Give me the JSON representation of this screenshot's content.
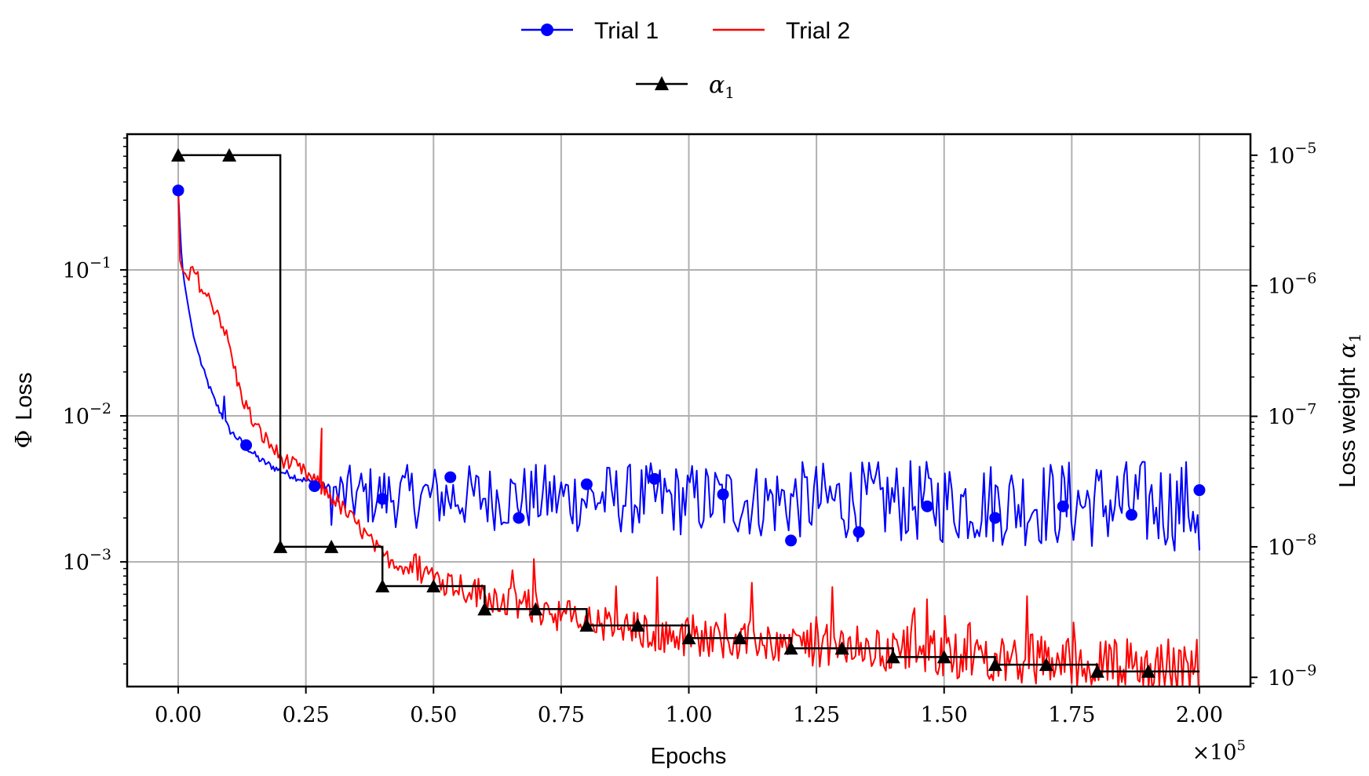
{
  "chart_data": {
    "type": "line",
    "title": "",
    "xlabel": "Epochs",
    "x_multiplier_label": "×10",
    "x_multiplier_exp": "5",
    "ylabel_symbol": "Φ",
    "ylabel_text": "Loss",
    "y2label_text": "Loss weight",
    "y2label_symbol": "α",
    "y2label_sub": "1",
    "x_range": [
      -0.1,
      2.1
    ],
    "x_ticks": [
      0.0,
      0.25,
      0.5,
      0.75,
      1.0,
      1.25,
      1.5,
      1.75,
      2.0
    ],
    "x_tick_labels": [
      "0.00",
      "0.25",
      "0.50",
      "0.75",
      "1.00",
      "1.25",
      "1.50",
      "1.75",
      "2.00"
    ],
    "y_scale": "log",
    "y_range": [
      0.00014,
      0.85
    ],
    "y_ticks": [
      0.1,
      0.01,
      0.001
    ],
    "y_tick_labels": [
      {
        "base": "10",
        "exp": "−1"
      },
      {
        "base": "10",
        "exp": "−2"
      },
      {
        "base": "10",
        "exp": "−3"
      }
    ],
    "y2_scale": "log",
    "y2_range": [
      8.5e-10,
      1.45e-05
    ],
    "y2_ticks": [
      1e-05,
      1e-06,
      1e-07,
      1e-08,
      1e-09
    ],
    "y2_tick_labels": [
      {
        "base": "10",
        "exp": "−5"
      },
      {
        "base": "10",
        "exp": "−6"
      },
      {
        "base": "10",
        "exp": "−7"
      },
      {
        "base": "10",
        "exp": "−8"
      },
      {
        "base": "10",
        "exp": "−9"
      }
    ],
    "grid": true,
    "legend_placement": "top-center",
    "series": [
      {
        "name": "Trial 1",
        "color": "#0000ff",
        "marker": "circle",
        "axis": "left",
        "markers_x": [
          0.0,
          0.133,
          0.267,
          0.4,
          0.533,
          0.667,
          0.8,
          0.933,
          1.067,
          1.2,
          1.333,
          1.467,
          1.6,
          1.733,
          1.867,
          2.0
        ],
        "markers_y": [
          0.35,
          0.0063,
          0.0033,
          0.0027,
          0.0038,
          0.002,
          0.0034,
          0.0037,
          0.0029,
          0.0014,
          0.0016,
          0.0024,
          0.002,
          0.0024,
          0.0021,
          0.0031
        ],
        "trend_x": [
          0.0,
          0.005,
          0.01,
          0.02,
          0.03,
          0.05,
          0.07,
          0.1,
          0.13,
          0.16,
          0.2,
          0.24,
          0.27,
          0.3
        ],
        "trend_y": [
          0.35,
          0.15,
          0.09,
          0.055,
          0.035,
          0.02,
          0.013,
          0.008,
          0.0063,
          0.005,
          0.0042,
          0.0037,
          0.0034,
          0.0032
        ],
        "noise_center": 0.0028,
        "noise_growth": 0.002
      },
      {
        "name": "Trial 2",
        "color": "#ff0000",
        "marker": "none",
        "axis": "left",
        "trend_x": [
          0.0,
          0.003,
          0.01,
          0.02,
          0.03,
          0.05,
          0.08,
          0.1,
          0.12,
          0.15,
          0.2,
          0.25,
          0.3,
          0.35,
          0.4,
          0.5,
          0.6,
          0.7,
          0.8,
          0.9,
          1.0,
          1.2,
          1.4,
          1.6,
          1.8,
          2.0
        ],
        "trend_y": [
          0.35,
          0.11,
          0.09,
          0.085,
          0.1,
          0.07,
          0.05,
          0.03,
          0.015,
          0.0085,
          0.0052,
          0.004,
          0.0028,
          0.0018,
          0.0011,
          0.00075,
          0.00055,
          0.00045,
          0.00036,
          0.00031,
          0.00028,
          0.00025,
          0.00022,
          0.0002,
          0.00018,
          0.000165
        ]
      },
      {
        "name": "α",
        "name_sub": "1",
        "color": "#000000",
        "marker": "triangle",
        "axis": "right",
        "step_x": [
          0.0,
          0.2,
          0.4,
          0.6,
          0.8,
          1.0,
          1.2,
          1.4,
          1.6,
          1.8,
          2.0
        ],
        "step_y": [
          1e-05,
          1e-08,
          5e-09,
          3.33e-09,
          2.5e-09,
          2e-09,
          1.67e-09,
          1.43e-09,
          1.25e-09,
          1.11e-09,
          1.11e-09
        ],
        "markers_x": [
          0.0,
          0.1,
          0.2,
          0.3,
          0.4,
          0.5,
          0.6,
          0.7,
          0.8,
          0.9,
          1.0,
          1.1,
          1.2,
          1.3,
          1.4,
          1.5,
          1.6,
          1.7,
          1.8,
          1.9
        ],
        "markers_y": [
          1e-05,
          1e-05,
          1e-08,
          1e-08,
          5e-09,
          5e-09,
          3.33e-09,
          3.33e-09,
          2.5e-09,
          2.5e-09,
          2e-09,
          2e-09,
          1.67e-09,
          1.67e-09,
          1.43e-09,
          1.43e-09,
          1.25e-09,
          1.25e-09,
          1.11e-09,
          1.11e-09
        ]
      }
    ]
  }
}
